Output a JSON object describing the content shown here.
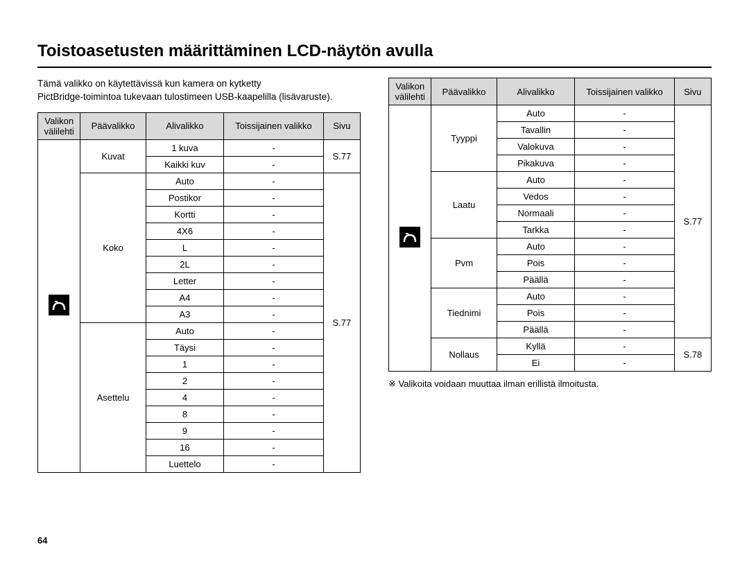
{
  "title": "Toistoasetusten määrittäminen LCD-näytön avulla",
  "intro_line1": "Tämä valikko on käytettävissä kun kamera on kytketty",
  "intro_line2": "PictBridge-toimintoa tukevaan tulostimeen USB-kaapelilla (lisävaruste).",
  "headers": {
    "menu_tab": "Valikon välilehti",
    "main_menu": "Päävalikko",
    "sub_menu": "Alivalikko",
    "secondary": "Toissijainen valikko",
    "page": "Sivu"
  },
  "left_table": {
    "groups": [
      {
        "main": "Kuvat",
        "page": "S.77",
        "rows": [
          {
            "sub": "1 kuva",
            "sec": "-"
          },
          {
            "sub": "Kaikki kuv",
            "sec": "-"
          }
        ]
      },
      {
        "main": "Koko",
        "page_span_with_next": true,
        "rows": [
          {
            "sub": "Auto",
            "sec": "-"
          },
          {
            "sub": "Postikor",
            "sec": "-"
          },
          {
            "sub": "Kortti",
            "sec": "-"
          },
          {
            "sub": "4X6",
            "sec": "-"
          },
          {
            "sub": "L",
            "sec": "-"
          },
          {
            "sub": "2L",
            "sec": "-"
          },
          {
            "sub": "Letter",
            "sec": "-"
          },
          {
            "sub": "A4",
            "sec": "-"
          },
          {
            "sub": "A3",
            "sec": "-"
          }
        ]
      },
      {
        "main": "Asettelu",
        "page": "S.77",
        "rows": [
          {
            "sub": "Auto",
            "sec": "-"
          },
          {
            "sub": "Täysi",
            "sec": "-"
          },
          {
            "sub": "1",
            "sec": "-"
          },
          {
            "sub": "2",
            "sec": "-"
          },
          {
            "sub": "4",
            "sec": "-"
          },
          {
            "sub": "8",
            "sec": "-"
          },
          {
            "sub": "9",
            "sec": "-"
          },
          {
            "sub": "16",
            "sec": "-"
          },
          {
            "sub": "Luettelo",
            "sec": "-"
          }
        ]
      }
    ]
  },
  "right_table": {
    "groups": [
      {
        "main": "Tyyppi",
        "rows": [
          {
            "sub": "Auto",
            "sec": "-"
          },
          {
            "sub": "Tavallin",
            "sec": "-"
          },
          {
            "sub": "Valokuva",
            "sec": "-"
          },
          {
            "sub": "Pikakuva",
            "sec": "-"
          }
        ]
      },
      {
        "main": "Laatu",
        "rows": [
          {
            "sub": "Auto",
            "sec": "-"
          },
          {
            "sub": "Vedos",
            "sec": "-"
          },
          {
            "sub": "Normaali",
            "sec": "-"
          },
          {
            "sub": "Tarkka",
            "sec": "-"
          }
        ]
      },
      {
        "main": "Pvm",
        "rows": [
          {
            "sub": "Auto",
            "sec": "-"
          },
          {
            "sub": "Pois",
            "sec": "-"
          },
          {
            "sub": "Päällä",
            "sec": "-"
          }
        ]
      },
      {
        "main": "Tiednimi",
        "rows": [
          {
            "sub": "Auto",
            "sec": "-"
          },
          {
            "sub": "Pois",
            "sec": "-"
          },
          {
            "sub": "Päällä",
            "sec": "-"
          }
        ]
      },
      {
        "main": "Nollaus",
        "page": "S.78",
        "rows": [
          {
            "sub": "Kyllä",
            "sec": "-"
          },
          {
            "sub": "Ei",
            "sec": "-"
          }
        ]
      }
    ],
    "page_first_block": "S.77"
  },
  "note": "※ Valikoita voidaan muuttaa ilman erillistä ilmoitusta.",
  "page_number": "64",
  "colors": {
    "header_bg": "#d9d9d9",
    "border": "#000000",
    "icon_bg": "#000000",
    "icon_fg": "#ffffff"
  }
}
